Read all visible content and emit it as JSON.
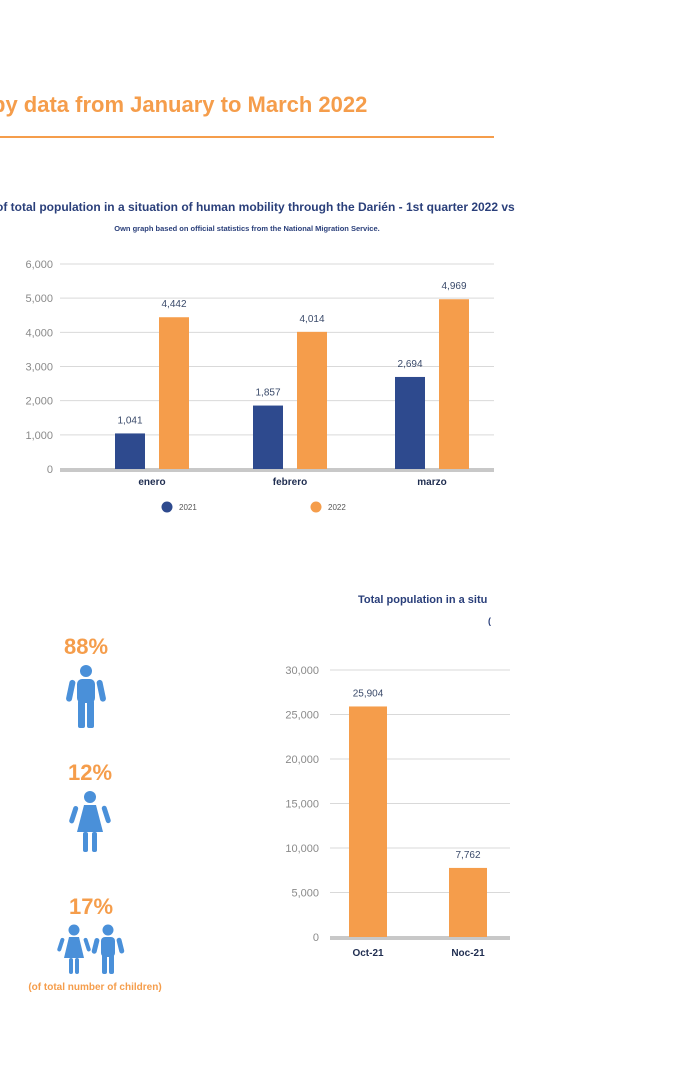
{
  "header": {
    "title": "by data from January to March 2022"
  },
  "chart1": {
    "title": "of total population in a situation of human mobility through the Darién - 1st quarter 2022 vs",
    "subtitle": "Own graph based on official statistics from the National Migration Service."
  },
  "chart2": {
    "title": "Total population in a situ",
    "subtitle_fragment": "("
  },
  "stats": [
    {
      "pct": "88%",
      "icon": "man-icon"
    },
    {
      "pct": "12%",
      "icon": "woman-icon"
    },
    {
      "pct": "17%",
      "icon": "children-icon",
      "note": "(of total number of children)"
    }
  ],
  "chart_data": [
    {
      "type": "bar",
      "title": "of total population in a situation of human mobility through the Darién - 1st quarter 2022 vs",
      "categories": [
        "enero",
        "febrero",
        "marzo"
      ],
      "series": [
        {
          "name": "2021",
          "values": [
            1041,
            1857,
            2694
          ],
          "labels": [
            "1,041",
            "1,857",
            "2,694"
          ],
          "color": "#2e4a8e"
        },
        {
          "name": "2022",
          "values": [
            4442,
            4014,
            4969
          ],
          "labels": [
            "4,442",
            "4,014",
            "4,969"
          ],
          "color": "#f59d4b"
        }
      ],
      "yticks": [
        "0",
        "1,000",
        "2,000",
        "3,000",
        "4,000",
        "5,000",
        "6,000"
      ],
      "ylim": [
        0,
        6000
      ],
      "grid": true,
      "legend": "bottom"
    },
    {
      "type": "bar",
      "title": "Total population in a situ",
      "categories": [
        "Oct-21",
        "Noc-21"
      ],
      "series": [
        {
          "values": [
            25904,
            7762
          ],
          "labels": [
            "25,904",
            "7,762"
          ],
          "color": "#f59d4b"
        }
      ],
      "yticks": [
        "0",
        "5,000",
        "10,000",
        "15,000",
        "20,000",
        "25,000",
        "30,000"
      ],
      "ylim": [
        0,
        30000
      ],
      "grid": true
    }
  ]
}
